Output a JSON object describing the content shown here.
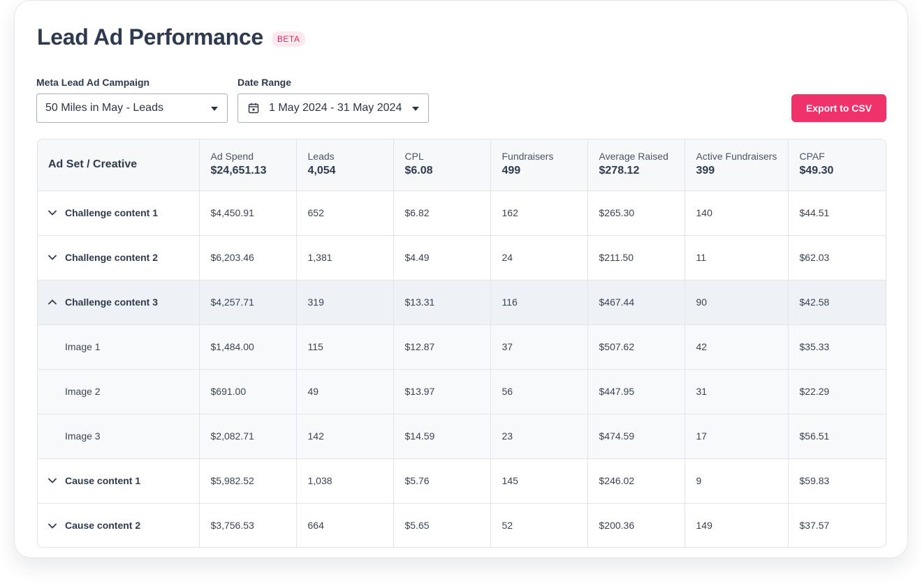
{
  "header": {
    "title": "Lead Ad Performance",
    "badge": "BETA"
  },
  "filters": {
    "campaign_label": "Meta Lead Ad Campaign",
    "campaign_value": "50 Miles in May - Leads",
    "date_label": "Date Range",
    "date_value": "1 May 2024 - 31 May 2024"
  },
  "actions": {
    "export_label": "Export to CSV"
  },
  "colors": {
    "accent": "#f0326a",
    "badge_bg": "#fde8ef",
    "text": "#2e3a4f"
  },
  "table": {
    "first_header": "Ad Set / Creative",
    "columns": [
      {
        "label": "Ad Spend",
        "total": "$24,651.13"
      },
      {
        "label": "Leads",
        "total": "4,054"
      },
      {
        "label": "CPL",
        "total": "$6.08"
      },
      {
        "label": "Fundraisers",
        "total": "499"
      },
      {
        "label": "Average Raised",
        "total": "$278.12"
      },
      {
        "label": "Active Fundraisers",
        "total": "399"
      },
      {
        "label": "CPAF",
        "total": "$49.30"
      }
    ],
    "rows": [
      {
        "name": "Challenge content 1",
        "icon": "chevron-down-icon",
        "cells": [
          "$4,450.91",
          "652",
          "$6.82",
          "162",
          "$265.30",
          "140",
          "$44.51"
        ]
      },
      {
        "name": "Challenge content 2",
        "icon": "chevron-down-icon",
        "cells": [
          "$6,203.46",
          "1,381",
          "$4.49",
          "24",
          "$211.50",
          "11",
          "$62.03"
        ]
      },
      {
        "name": "Challenge content 3",
        "icon": "chevron-up-icon",
        "cells": [
          "$4,257.71",
          "319",
          "$13.31",
          "116",
          "$467.44",
          "90",
          "$42.58"
        ]
      },
      {
        "name": "Image 1",
        "cells": [
          "$1,484.00",
          "115",
          "$12.87",
          "37",
          "$507.62",
          "42",
          "$35.33"
        ]
      },
      {
        "name": "Image 2",
        "cells": [
          "$691.00",
          "49",
          "$13.97",
          "56",
          "$447.95",
          "31",
          "$22.29"
        ]
      },
      {
        "name": "Image 3",
        "cells": [
          "$2,082.71",
          "142",
          "$14.59",
          "23",
          "$474.59",
          "17",
          "$56.51"
        ]
      },
      {
        "name": "Cause content 1",
        "icon": "chevron-down-icon",
        "cells": [
          "$5,982.52",
          "1,038",
          "$5.76",
          "145",
          "$246.02",
          "9",
          "$59.83"
        ]
      },
      {
        "name": "Cause content 2",
        "icon": "chevron-down-icon",
        "cells": [
          "$3,756.53",
          "664",
          "$5.65",
          "52",
          "$200.36",
          "149",
          "$37.57"
        ]
      }
    ]
  }
}
